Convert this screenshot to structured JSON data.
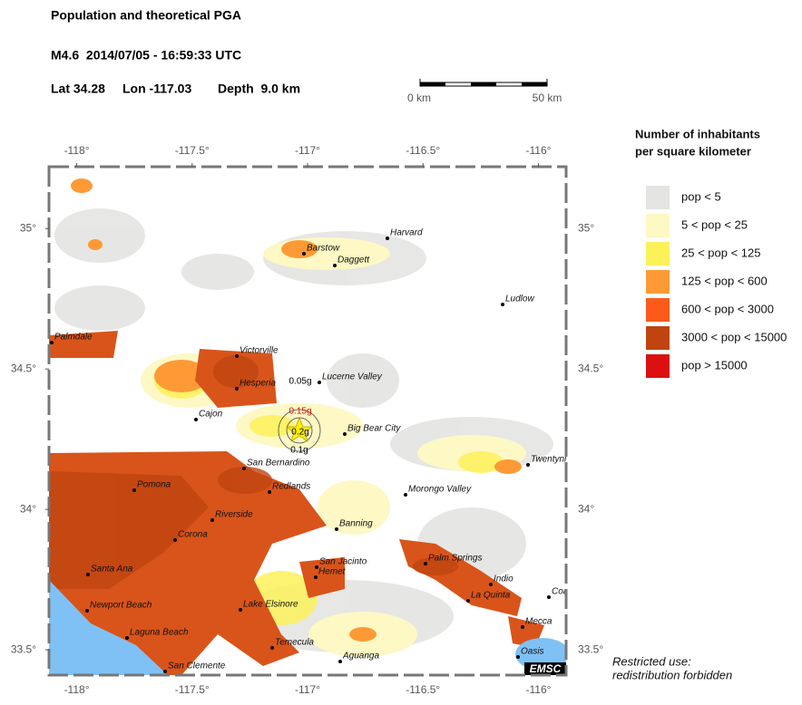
{
  "header": {
    "title": "Population and theoretical PGA",
    "event": "M4.6  2014/07/05 - 16:59:33 UTC",
    "lat": "Lat 34.28",
    "lon": "Lon -117.03",
    "depth": "Depth  9.0 km"
  },
  "scale_bar": {
    "start": "0 km",
    "end": "50 km"
  },
  "map": {
    "lon_range": [
      -118.12,
      -115.88
    ],
    "lat_range": [
      33.41,
      35.22
    ],
    "lon_ticks": [
      {
        "value": -118,
        "label": "-118°"
      },
      {
        "value": -117.5,
        "label": "-117.5°"
      },
      {
        "value": -117,
        "label": "-117°"
      },
      {
        "value": -116.5,
        "label": "-116.5°"
      },
      {
        "value": -116,
        "label": "-116°"
      }
    ],
    "lat_ticks": [
      {
        "value": 35,
        "label": "35°"
      },
      {
        "value": 34.5,
        "label": "34.5°"
      },
      {
        "value": 34,
        "label": "34°"
      },
      {
        "value": 33.5,
        "label": "33.5°"
      }
    ],
    "pga_labels": [
      "0.15g",
      "0.2g",
      "0.1g",
      "0.05g"
    ],
    "cities": [
      "Harvard",
      "Barstow",
      "Daggett",
      "Ludlow",
      "Palmdale",
      "Victorville",
      "Lucerne Valley",
      "Hesperia",
      "Cajon",
      "Big Bear City",
      "San Bernardino",
      "Twentynine Palms",
      "Pomona",
      "Redlands",
      "Morongo Valley",
      "Riverside",
      "Banning",
      "Corona",
      "Palm Springs",
      "San Jacinto",
      "Santa Ana",
      "Hemet",
      "Indio",
      "Coachella",
      "La Quinta",
      "Newport Beach",
      "Lake Elsinore",
      "Mecca",
      "Laguna Beach",
      "Temecula",
      "Aguanga",
      "Oasis",
      "San Clemente"
    ],
    "logo": "EMSC"
  },
  "legend": {
    "title": [
      "Number of inhabitants",
      "per square kilometer"
    ],
    "items": [
      {
        "label": "pop < 5",
        "color": "#e4e4e2"
      },
      {
        "label": "5 < pop < 25",
        "color": "#fdf8c4"
      },
      {
        "label": "25 < pop < 125",
        "color": "#fdf15a"
      },
      {
        "label": "125 < pop < 600",
        "color": "#fe9a35"
      },
      {
        "label": "600 < pop < 3000",
        "color": "#fb5a1a"
      },
      {
        "label": "3000 < pop < 15000",
        "color": "#bf4410"
      },
      {
        "label": "pop > 15000",
        "color": "#dc1010"
      }
    ]
  },
  "note": [
    "Restricted use:",
    "redistribution forbidden"
  ]
}
